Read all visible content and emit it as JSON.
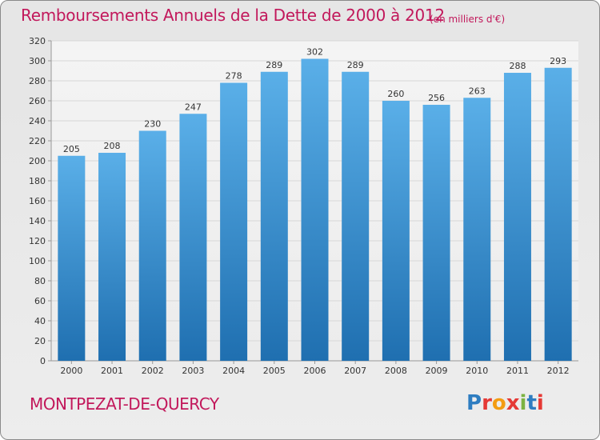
{
  "header": {
    "title": "Remboursements Annuels de la Dette de 2000 à 2012",
    "subtitle": "(en milliers d'€)"
  },
  "footer": {
    "place": "MONTPEZAT-DE-QUERCY",
    "logo_text": "Proxiti",
    "logo_colors": [
      "#2e7dc1",
      "#e53935",
      "#f39c12",
      "#e53935",
      "#7cb342",
      "#2e7dc1",
      "#e53935"
    ]
  },
  "colors": {
    "bar_top": "#5aafe8",
    "bar_bottom": "#1f6fb0",
    "title": "#c2185b",
    "grid": "#d7d7d7",
    "axis_text": "#333333"
  },
  "chart_data": {
    "type": "bar",
    "categories": [
      "2000",
      "2001",
      "2002",
      "2003",
      "2004",
      "2005",
      "2006",
      "2007",
      "2008",
      "2009",
      "2010",
      "2011",
      "2012"
    ],
    "values": [
      205,
      208,
      230,
      247,
      278,
      289,
      302,
      289,
      260,
      256,
      263,
      288,
      293
    ],
    "yticks": [
      0,
      20,
      40,
      60,
      80,
      100,
      120,
      140,
      160,
      180,
      200,
      220,
      240,
      260,
      280,
      300,
      320
    ],
    "ylim": [
      0,
      320
    ],
    "grid": true,
    "title": "Remboursements Annuels de la Dette de 2000 à 2012",
    "xlabel": "",
    "ylabel": ""
  }
}
